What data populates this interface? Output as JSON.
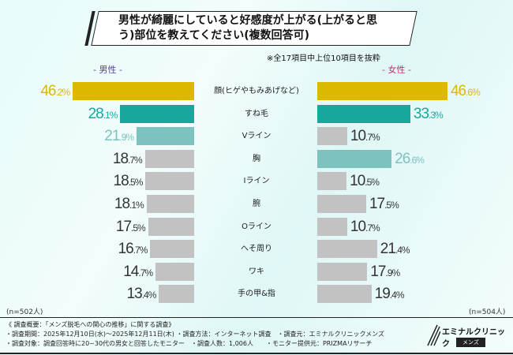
{
  "chart_data": {
    "type": "bar",
    "title": "男性が綺麗にしていると好感度が上がる(上がると思う)部位を教えてください(複数回答可)",
    "note": "※全17項目中上位10項目を抜粋",
    "categories": [
      "顔(ヒゲやもみあげなど)",
      "すね毛",
      "Vライン",
      "胸",
      "Iライン",
      "腕",
      "Oライン",
      "へそ周り",
      "ワキ",
      "手の甲&指"
    ],
    "series": [
      {
        "name": "- 男性 -",
        "n": "(n=502人)",
        "values": [
          46.2,
          28.1,
          21.9,
          18.7,
          18.5,
          18.1,
          17.5,
          16.7,
          14.7,
          13.4
        ]
      },
      {
        "name": "- 女性 -",
        "n": "(n=504人)",
        "values": [
          46.6,
          33.3,
          10.7,
          26.6,
          10.5,
          17.5,
          10.7,
          21.4,
          17.9,
          19.4
        ]
      }
    ],
    "unit": "%"
  },
  "colors": {
    "gold": "#dcb800",
    "teal": "#16a89d",
    "lightteal": "#7cc3bf",
    "gray": "#c2c2c2",
    "grayText": "#333333"
  },
  "footer": [
    "《 調査概要：「メンズ脱毛への関心の推移」に関する調査》",
    "・調査期間：2025年12月10日(水)～2025年12月11日(木) ・調査方法：インターネット調査　・調査元：エミナルクリニックメンズ",
    "・調査対象：調査回答時に20~30代の男女と回答したモニター　・調査人数：1,006人　　・モニター提供元：PRIZMAリサーチ"
  ],
  "logo": {
    "name": "エミナルクリニック",
    "sub": "メンズ"
  }
}
